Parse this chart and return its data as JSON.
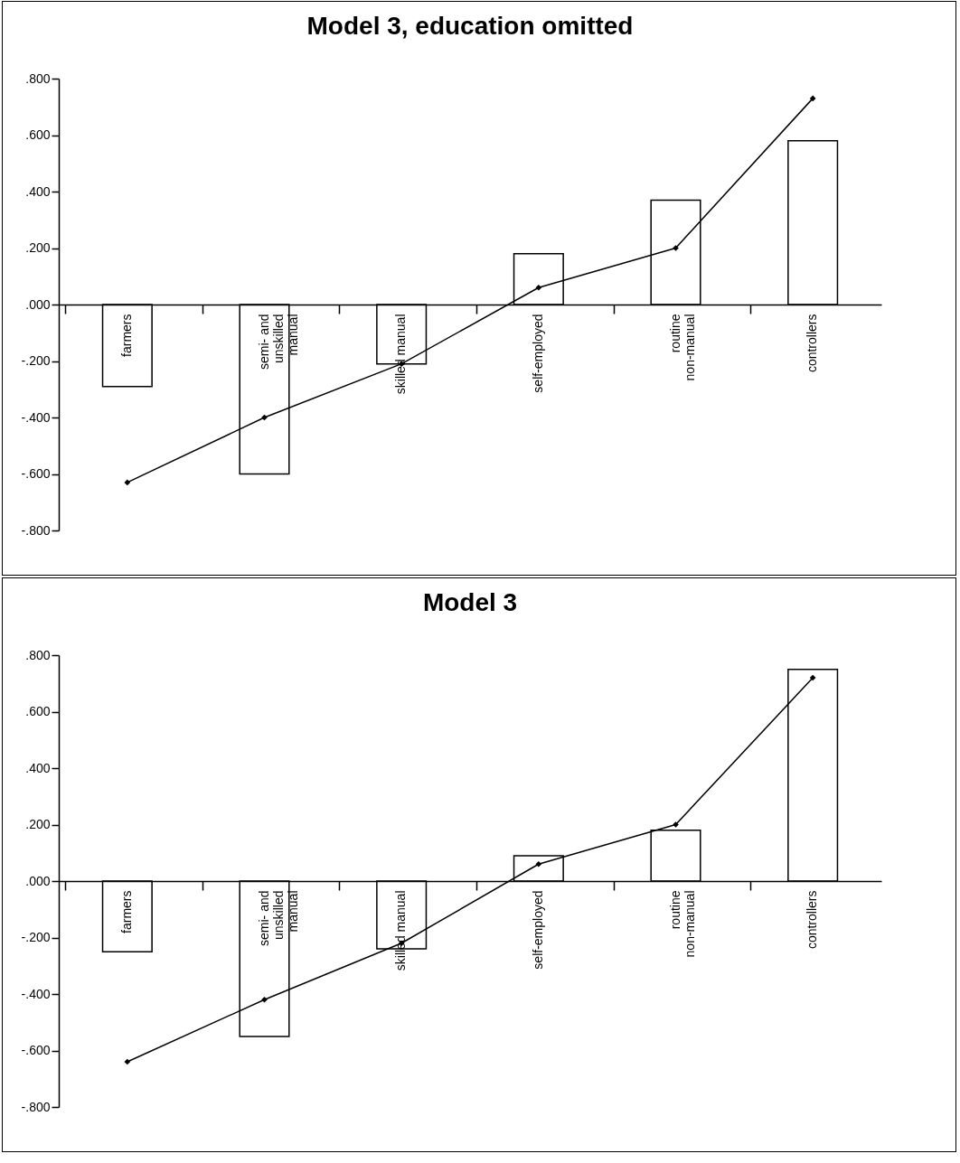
{
  "chart_data": [
    {
      "type": "bar",
      "title": "Model 3, education omitted",
      "categories": [
        "farmers",
        "semi- and unskilled manual",
        "skilled manual",
        "self-employed",
        "routine non-manual",
        "controllers"
      ],
      "series": [
        {
          "color": "#ffffff",
          "values": [
            -0.29,
            -0.6,
            -0.21,
            0.18,
            0.37,
            0.58
          ]
        },
        {
          "type": "line",
          "color": "#000000",
          "values": [
            -0.63,
            -0.4,
            -0.21,
            0.06,
            0.2,
            0.73
          ]
        }
      ],
      "ylim": [
        -0.8,
        0.8
      ],
      "yticks": [
        {
          "value": -0.8,
          "label": "-.800"
        },
        {
          "value": -0.6,
          "label": "-.600"
        },
        {
          "value": -0.4,
          "label": "-.400"
        },
        {
          "value": -0.2,
          "label": "-.200"
        },
        {
          "value": 0,
          "label": ".000"
        },
        {
          "value": 0.2,
          "label": ".200"
        },
        {
          "value": 0.4,
          "label": ".400"
        },
        {
          "value": 0.6,
          "label": ".600"
        },
        {
          "value": 0.8,
          "label": ".800"
        }
      ],
      "marker": "diamond"
    },
    {
      "type": "bar",
      "title": "Model 3",
      "categories": [
        "farmers",
        "semi- and unskilled manual",
        "skilled manual",
        "self-employed",
        "routine non-manual",
        "controllers"
      ],
      "series": [
        {
          "color": "#ffffff",
          "values": [
            -0.25,
            -0.55,
            -0.24,
            0.09,
            0.18,
            0.75
          ]
        },
        {
          "type": "line",
          "color": "#000000",
          "values": [
            -0.64,
            -0.42,
            -0.22,
            0.06,
            0.2,
            0.72
          ]
        }
      ],
      "ylim": [
        -0.8,
        0.8
      ],
      "yticks": [
        {
          "value": -0.8,
          "label": "-.800"
        },
        {
          "value": -0.6,
          "label": "-.600"
        },
        {
          "value": -0.4,
          "label": "-.400"
        },
        {
          "value": -0.2,
          "label": "-.200"
        },
        {
          "value": 0,
          "label": ".000"
        },
        {
          "value": 0.2,
          "label": ".200"
        },
        {
          "value": 0.4,
          "label": ".400"
        },
        {
          "value": 0.6,
          "label": ".600"
        },
        {
          "value": 0.8,
          "label": ".800"
        }
      ],
      "marker": "diamond"
    }
  ]
}
